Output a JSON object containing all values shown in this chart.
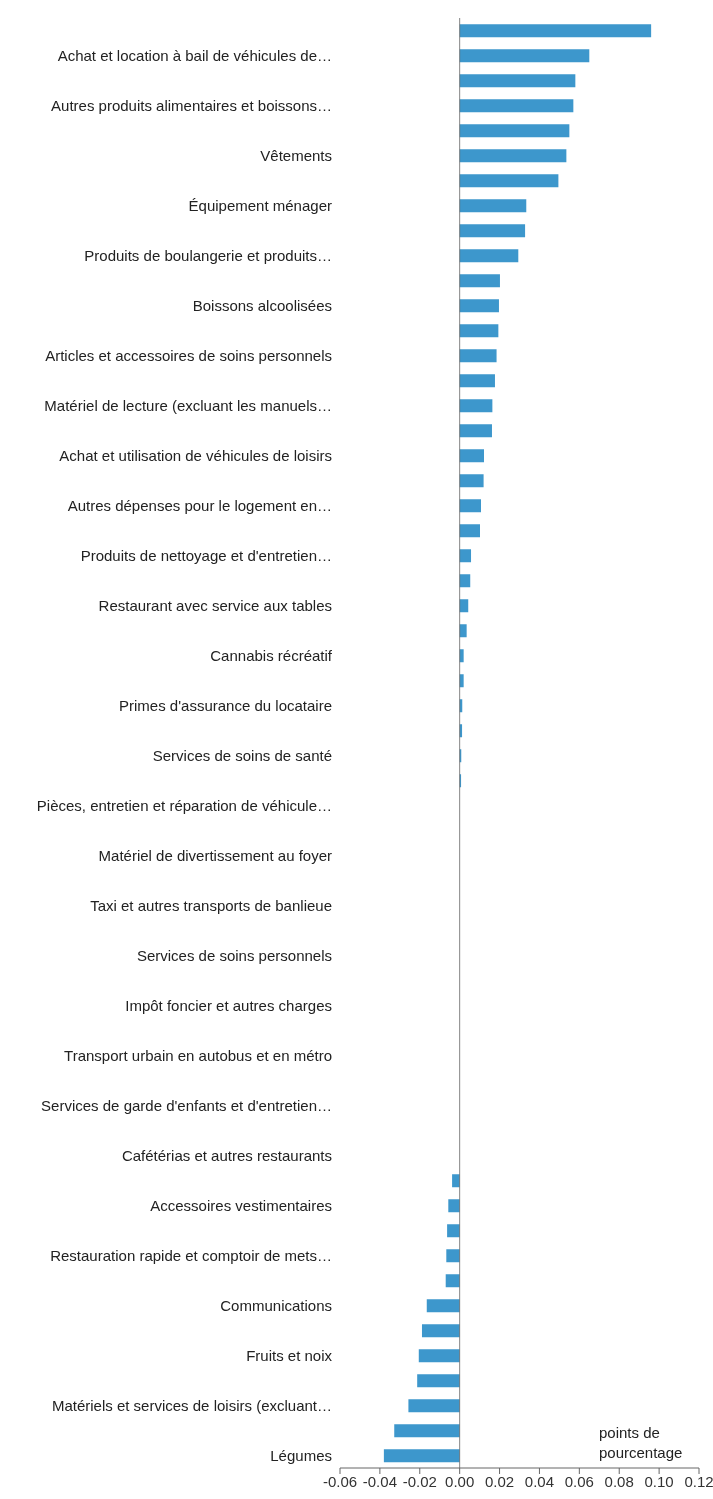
{
  "chart_data": {
    "type": "bar",
    "orientation": "horizontal",
    "xlabel": "points de pourcentage",
    "categories": [
      null,
      "Achat et location à bail de véhicules de…",
      null,
      "Autres produits alimentaires et boissons…",
      null,
      "Vêtements",
      null,
      "Équipement ménager",
      null,
      "Produits de boulangerie et produits…",
      null,
      "Boissons alcoolisées",
      null,
      "Articles et accessoires de soins personnels",
      null,
      "Matériel de lecture (excluant les manuels…",
      null,
      "Achat et utilisation de véhicules de loisirs",
      null,
      "Autres dépenses pour le logement en…",
      null,
      "Produits de nettoyage et d'entretien…",
      null,
      "Restaurant avec service aux tables",
      null,
      "Cannabis récréatif",
      null,
      "Primes d'assurance du locataire",
      null,
      "Services de soins de santé",
      null,
      "Pièces, entretien et réparation de véhicule…",
      null,
      "Matériel de divertissement au foyer",
      null,
      "Taxi et autres transports de banlieue",
      null,
      "Services de soins personnels",
      null,
      "Impôt foncier et autres charges",
      null,
      "Transport urbain en autobus et en métro",
      null,
      "Services de garde d'enfants et d'entretien…",
      null,
      "Cafétérias et autres restaurants",
      null,
      "Accessoires vestimentaires",
      null,
      "Restauration rapide et comptoir de mets…",
      null,
      "Communications",
      null,
      "Fruits et noix",
      null,
      "Matériels et services de loisirs (excluant…",
      null,
      "Légumes"
    ],
    "values": [
      0.096,
      0.065,
      0.058,
      0.057,
      0.055,
      0.0535,
      0.0495,
      0.0334,
      0.0328,
      0.0294,
      0.0202,
      0.0197,
      0.0194,
      0.0185,
      0.0177,
      0.0164,
      0.0162,
      0.0122,
      0.012,
      0.0107,
      0.0102,
      0.0057,
      0.0053,
      0.0043,
      0.0035,
      0.002,
      0.002,
      0.0013,
      0.0012,
      0.0008,
      0.0007,
      0,
      0,
      0,
      0,
      0,
      0,
      0,
      0,
      0,
      0,
      0,
      0,
      0,
      0,
      0,
      -0.0038,
      -0.0057,
      -0.0063,
      -0.0067,
      -0.007,
      -0.0165,
      -0.0189,
      -0.0205,
      -0.0213,
      -0.0257,
      -0.0328,
      -0.038
    ],
    "color": "#3d97cc",
    "xlim": [
      -0.06,
      0.12
    ],
    "xticks": [
      -0.06,
      -0.04,
      -0.02,
      {
        "value": 0,
        "label": "0.00"
      },
      0.02,
      0.04,
      0.06,
      0.08,
      {
        "value": 0.1,
        "label": "0.10"
      },
      0.12
    ]
  }
}
